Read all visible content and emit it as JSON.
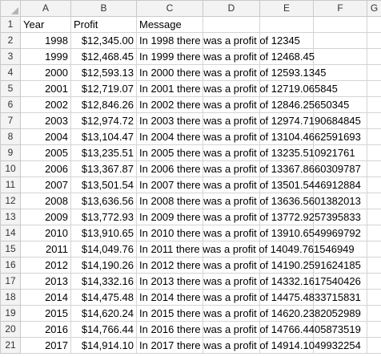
{
  "columns": [
    "A",
    "B",
    "C",
    "D",
    "E",
    "F",
    "G"
  ],
  "header_row": {
    "row_number": "1",
    "year": "Year",
    "profit": "Profit",
    "message": "Message"
  },
  "rows": [
    {
      "row": "2",
      "year": "1998",
      "profit": "$12,345.00",
      "message": "In 1998 there was a profit of 12345"
    },
    {
      "row": "3",
      "year": "1999",
      "profit": "$12,468.45",
      "message": "In 1999 there was a profit of 12468.45"
    },
    {
      "row": "4",
      "year": "2000",
      "profit": "$12,593.13",
      "message": "In 2000 there was a profit of 12593.1345"
    },
    {
      "row": "5",
      "year": "2001",
      "profit": "$12,719.07",
      "message": "In 2001 there was a profit of 12719.065845"
    },
    {
      "row": "6",
      "year": "2002",
      "profit": "$12,846.26",
      "message": "In 2002 there was a profit of 12846.25650345"
    },
    {
      "row": "7",
      "year": "2003",
      "profit": "$12,974.72",
      "message": "In 2003 there was a profit of 12974.7190684845"
    },
    {
      "row": "8",
      "year": "2004",
      "profit": "$13,104.47",
      "message": "In 2004 there was a profit of 13104.4662591693"
    },
    {
      "row": "9",
      "year": "2005",
      "profit": "$13,235.51",
      "message": "In 2005 there was a profit of 13235.510921761"
    },
    {
      "row": "10",
      "year": "2006",
      "profit": "$13,367.87",
      "message": "In 2006 there was a profit of 13367.8660309787"
    },
    {
      "row": "11",
      "year": "2007",
      "profit": "$13,501.54",
      "message": "In 2007 there was a profit of 13501.5446912884"
    },
    {
      "row": "12",
      "year": "2008",
      "profit": "$13,636.56",
      "message": "In 2008 there was a profit of 13636.5601382013"
    },
    {
      "row": "13",
      "year": "2009",
      "profit": "$13,772.93",
      "message": "In 2009 there was a profit of 13772.9257395833"
    },
    {
      "row": "14",
      "year": "2010",
      "profit": "$13,910.65",
      "message": "In 2010 there was a profit of 13910.6549969792"
    },
    {
      "row": "15",
      "year": "2011",
      "profit": "$14,049.76",
      "message": "In 2011 there was a profit of 14049.761546949"
    },
    {
      "row": "16",
      "year": "2012",
      "profit": "$14,190.26",
      "message": "In 2012 there was a profit of 14190.2591624185"
    },
    {
      "row": "17",
      "year": "2013",
      "profit": "$14,332.16",
      "message": "In 2013 there was a profit of 14332.1617540426"
    },
    {
      "row": "18",
      "year": "2014",
      "profit": "$14,475.48",
      "message": "In 2014 there was a profit of 14475.4833715831"
    },
    {
      "row": "19",
      "year": "2015",
      "profit": "$14,620.24",
      "message": "In 2015 there was a profit of 14620.2382052989"
    },
    {
      "row": "20",
      "year": "2016",
      "profit": "$14,766.44",
      "message": "In 2016 there was a profit of 14766.4405873519"
    },
    {
      "row": "21",
      "year": "2017",
      "profit": "$14,914.10",
      "message": "In 2017 there was a profit of 14914.1049932254"
    }
  ]
}
